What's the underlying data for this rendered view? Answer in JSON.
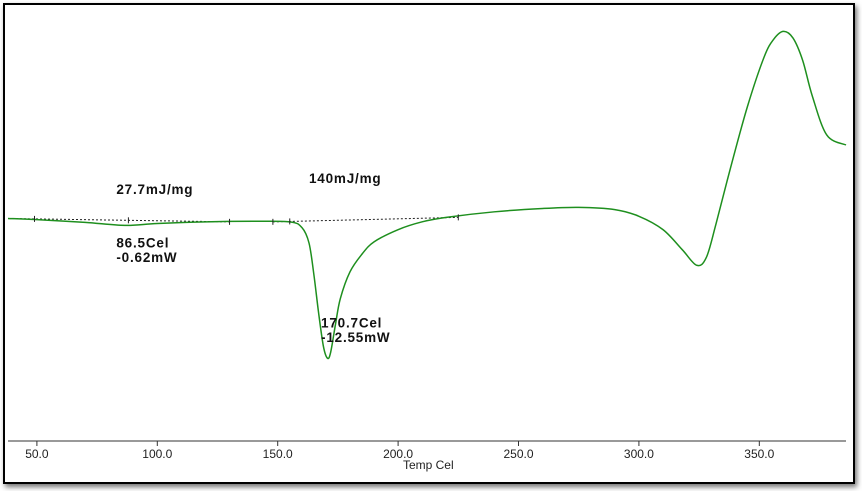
{
  "chart_data": {
    "type": "line",
    "title": "",
    "xlabel": "Temp Cel",
    "ylabel": "",
    "xlim": [
      38,
      386
    ],
    "ylim": [
      -14.5,
      18
    ],
    "x_ticks": [
      "50.0",
      "100.0",
      "150.0",
      "200.0",
      "250.0",
      "300.0",
      "350.0"
    ],
    "grid": false,
    "series": [
      {
        "color": "#1e8f1e",
        "x": [
          38,
          50,
          70,
          86.5,
          100,
          120,
          140,
          155,
          160,
          163,
          165,
          167,
          169,
          170.7,
          172,
          174,
          176,
          180,
          185,
          190,
          200,
          210,
          220,
          240,
          260,
          275,
          290,
          300,
          310,
          318,
          324,
          328,
          332,
          338,
          345,
          352,
          356,
          360,
          364,
          368,
          372,
          378,
          386
        ],
        "y": [
          0,
          -0.1,
          -0.35,
          -0.62,
          -0.45,
          -0.3,
          -0.25,
          -0.3,
          -0.8,
          -2.2,
          -5.0,
          -8.5,
          -11.5,
          -12.55,
          -12.0,
          -9.5,
          -7.2,
          -4.8,
          -3.2,
          -2.1,
          -1.0,
          -0.3,
          0.1,
          0.6,
          0.9,
          1.0,
          0.8,
          0.2,
          -1.0,
          -2.8,
          -4.2,
          -3.5,
          -0.5,
          4.5,
          10.0,
          14.5,
          16.1,
          16.8,
          16.2,
          14.2,
          11.0,
          7.5,
          6.6
        ]
      }
    ],
    "baselines": [
      {
        "x": [
          38,
          130
        ],
        "y": [
          0,
          -0.3
        ]
      },
      {
        "x": [
          148,
          225
        ],
        "y": [
          -0.3,
          0.1
        ]
      }
    ],
    "markers_x": [
      49,
      88,
      130,
      148,
      155,
      225
    ],
    "annotations": [
      {
        "text": "27.7mJ/mg",
        "x": 83,
        "y": 2.2
      },
      {
        "text": "140mJ/mg",
        "x": 163,
        "y": 3.2
      },
      {
        "text": "86.5Cel",
        "x": 83,
        "y": -2.6
      },
      {
        "text": "-0.62mW",
        "x": 83,
        "y": -3.9
      },
      {
        "text": "170.7Cel",
        "x": 168,
        "y": -9.8
      },
      {
        "text": "-12.55mW",
        "x": 168,
        "y": -11.1
      }
    ]
  }
}
